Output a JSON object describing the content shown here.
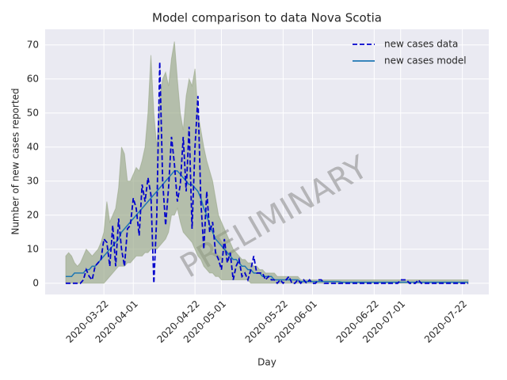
{
  "chart_data": {
    "type": "line",
    "title": "Model comparison to data Nova Scotia",
    "xlabel": "Day",
    "ylabel": "Number of new cases reported",
    "watermark": "PRELIMINARY",
    "grid": true,
    "legend": "upper right",
    "xlim": [
      "2020-03-02",
      "2020-07-31"
    ],
    "ylim": [
      -3.3,
      74.6
    ],
    "xticks": [
      "2020-03-22",
      "2020-04-01",
      "2020-04-22",
      "2020-05-01",
      "2020-05-22",
      "2020-06-01",
      "2020-06-22",
      "2020-07-01",
      "2020-07-22"
    ],
    "yticks": [
      0,
      10,
      20,
      30,
      40,
      50,
      60,
      70
    ],
    "x": [
      "2020-03-09",
      "2020-03-10",
      "2020-03-11",
      "2020-03-12",
      "2020-03-13",
      "2020-03-14",
      "2020-03-15",
      "2020-03-16",
      "2020-03-17",
      "2020-03-18",
      "2020-03-19",
      "2020-03-20",
      "2020-03-21",
      "2020-03-22",
      "2020-03-23",
      "2020-03-24",
      "2020-03-25",
      "2020-03-26",
      "2020-03-27",
      "2020-03-28",
      "2020-03-29",
      "2020-03-30",
      "2020-03-31",
      "2020-04-01",
      "2020-04-02",
      "2020-04-03",
      "2020-04-04",
      "2020-04-05",
      "2020-04-06",
      "2020-04-07",
      "2020-04-08",
      "2020-04-09",
      "2020-04-10",
      "2020-04-11",
      "2020-04-12",
      "2020-04-13",
      "2020-04-14",
      "2020-04-15",
      "2020-04-16",
      "2020-04-17",
      "2020-04-18",
      "2020-04-19",
      "2020-04-20",
      "2020-04-21",
      "2020-04-22",
      "2020-04-23",
      "2020-04-24",
      "2020-04-25",
      "2020-04-26",
      "2020-04-27",
      "2020-04-28",
      "2020-04-29",
      "2020-04-30",
      "2020-05-01",
      "2020-05-02",
      "2020-05-03",
      "2020-05-04",
      "2020-05-05",
      "2020-05-06",
      "2020-05-07",
      "2020-05-08",
      "2020-05-09",
      "2020-05-10",
      "2020-05-11",
      "2020-05-12",
      "2020-05-13",
      "2020-05-14",
      "2020-05-15",
      "2020-05-16",
      "2020-05-17",
      "2020-05-18",
      "2020-05-19",
      "2020-05-20",
      "2020-05-21",
      "2020-05-22",
      "2020-05-23",
      "2020-05-24",
      "2020-05-25",
      "2020-05-26",
      "2020-05-27",
      "2020-05-28",
      "2020-05-29",
      "2020-05-30",
      "2020-05-31",
      "2020-06-01",
      "2020-06-02",
      "2020-06-03",
      "2020-06-04",
      "2020-06-05",
      "2020-06-06",
      "2020-06-07",
      "2020-06-08",
      "2020-06-09",
      "2020-06-10",
      "2020-06-11",
      "2020-06-12",
      "2020-06-13",
      "2020-06-14",
      "2020-06-15",
      "2020-06-16",
      "2020-06-17",
      "2020-06-18",
      "2020-06-19",
      "2020-06-20",
      "2020-06-21",
      "2020-06-22",
      "2020-06-23",
      "2020-06-24",
      "2020-06-25",
      "2020-06-26",
      "2020-06-27",
      "2020-06-28",
      "2020-06-29",
      "2020-06-30",
      "2020-07-01",
      "2020-07-02",
      "2020-07-03",
      "2020-07-04",
      "2020-07-05",
      "2020-07-06",
      "2020-07-07",
      "2020-07-08",
      "2020-07-09",
      "2020-07-10",
      "2020-07-11",
      "2020-07-12",
      "2020-07-13",
      "2020-07-14",
      "2020-07-15",
      "2020-07-16",
      "2020-07-17",
      "2020-07-18",
      "2020-07-19",
      "2020-07-20",
      "2020-07-21",
      "2020-07-22",
      "2020-07-23",
      "2020-07-24"
    ],
    "series": [
      {
        "name": "new cases data",
        "color": "#0000cc",
        "dash": true,
        "values": [
          0,
          0,
          0,
          0,
          0,
          0,
          1,
          4,
          2,
          1,
          5,
          6,
          7,
          13,
          12,
          5,
          17,
          5,
          19,
          10,
          5,
          16,
          17,
          25,
          22,
          14,
          29,
          24,
          31,
          26,
          0,
          20,
          65,
          30,
          17,
          28,
          43,
          35,
          24,
          29,
          43,
          27,
          46,
          16,
          40,
          55,
          24,
          10,
          27,
          15,
          18,
          9,
          7,
          4,
          13,
          6,
          9,
          1,
          5,
          7,
          2,
          3,
          1,
          4,
          8,
          3,
          3,
          3,
          1,
          2,
          1,
          1,
          0,
          1,
          0,
          1,
          2,
          0,
          0,
          1,
          0,
          1,
          0,
          1,
          0,
          0,
          1,
          1,
          0,
          0,
          0,
          0,
          0,
          0,
          0,
          0,
          0,
          0,
          0,
          0,
          0,
          0,
          0,
          0,
          0,
          0,
          0,
          0,
          0,
          0,
          0,
          0,
          0,
          0,
          1,
          1,
          1,
          0,
          0,
          0,
          1,
          0,
          0,
          0,
          0,
          0,
          0,
          0,
          0,
          0,
          0,
          0,
          0,
          0,
          0,
          0,
          0,
          0
        ]
      },
      {
        "name": "new cases model",
        "color": "#1f77b4",
        "band_color": "#8fa07c",
        "values": [
          2,
          2,
          2,
          3,
          3,
          3,
          3,
          4,
          4,
          5,
          5,
          6,
          7,
          8,
          9,
          10,
          11,
          12,
          13,
          15,
          16,
          17,
          18,
          19,
          20,
          21,
          22,
          23,
          24,
          25,
          26,
          27,
          28,
          29,
          30,
          31,
          32,
          33,
          33,
          32,
          31,
          30,
          29,
          29,
          28,
          27,
          25,
          22,
          20,
          17,
          15,
          13,
          12,
          11,
          10,
          9,
          8,
          7,
          7,
          6,
          5,
          5,
          4,
          4,
          3,
          3,
          3,
          2,
          2,
          2,
          2,
          1,
          1,
          1,
          1,
          1,
          1,
          1,
          1,
          1,
          0.5,
          0.5,
          0.5,
          0.5,
          0.5,
          0.5,
          0.5,
          0.5,
          0.5,
          0.5,
          0.5,
          0.5,
          0.5,
          0.5,
          0.3,
          0.3,
          0.3,
          0.3,
          0.3,
          0.3,
          0.3,
          0.3,
          0.3,
          0.3,
          0.3,
          0.3,
          0.3,
          0.3,
          0.3,
          0.3,
          0.3,
          0.3,
          0.3,
          0.3,
          0.3,
          0.3,
          0.3,
          0.3,
          0.3,
          0.3,
          0.3,
          0.3,
          0.3,
          0.3,
          0.3,
          0.3,
          0.3,
          0.3,
          0.3,
          0.3,
          0.3,
          0.3,
          0.3,
          0.3,
          0.3,
          0.3,
          0.3,
          0.3
        ],
        "upper": [
          8,
          9,
          8,
          6,
          5,
          6,
          8,
          10,
          9,
          8,
          9,
          10,
          12,
          15,
          24,
          18,
          20,
          22,
          28,
          40,
          38,
          30,
          30,
          32,
          34,
          33,
          36,
          40,
          50,
          67,
          50,
          40,
          55,
          60,
          62,
          58,
          66,
          71,
          60,
          50,
          45,
          55,
          60,
          58,
          63,
          50,
          45,
          40,
          36,
          33,
          30,
          25,
          20,
          18,
          16,
          14,
          12,
          10,
          9,
          8,
          7,
          7,
          6,
          6,
          5,
          5,
          4,
          4,
          3,
          3,
          3,
          3,
          2,
          2,
          2,
          2,
          2,
          2,
          2,
          2,
          1,
          1,
          1,
          1,
          1,
          1,
          1,
          1,
          1,
          1,
          1,
          1,
          1,
          1,
          1,
          1,
          1,
          1,
          1,
          1,
          1,
          1,
          1,
          1,
          1,
          1,
          1,
          1,
          1,
          1,
          1,
          1,
          1,
          1,
          1,
          1,
          1,
          1,
          1,
          1,
          1,
          1,
          1,
          1,
          1,
          1,
          1,
          1,
          1,
          1,
          1,
          1,
          1,
          1,
          1,
          1,
          1,
          1
        ],
        "lower": [
          0,
          0,
          0,
          0,
          0,
          0,
          0,
          0,
          0,
          0,
          0,
          0,
          0,
          0,
          1,
          2,
          3,
          4,
          5,
          5,
          5,
          6,
          6,
          7,
          8,
          8,
          8,
          9,
          9,
          10,
          10,
          10,
          11,
          12,
          13,
          15,
          20,
          20,
          22,
          18,
          15,
          14,
          13,
          12,
          10,
          8,
          7,
          5,
          4,
          3,
          3,
          2,
          2,
          1,
          1,
          1,
          1,
          1,
          1,
          1,
          1,
          1,
          1,
          0,
          0,
          0,
          0,
          0,
          0,
          0,
          0,
          0,
          0,
          0,
          0,
          0,
          0,
          0,
          0,
          0,
          0,
          0,
          0,
          0,
          0,
          0,
          0,
          0,
          0,
          0,
          0,
          0,
          0,
          0,
          0,
          0,
          0,
          0,
          0,
          0,
          0,
          0,
          0,
          0,
          0,
          0,
          0,
          0,
          0,
          0,
          0,
          0,
          0,
          0,
          0,
          0,
          0,
          0,
          0,
          0,
          0,
          0,
          0,
          0,
          0,
          0,
          0,
          0,
          0,
          0,
          0,
          0,
          0,
          0,
          0,
          0,
          0,
          0
        ]
      }
    ]
  }
}
